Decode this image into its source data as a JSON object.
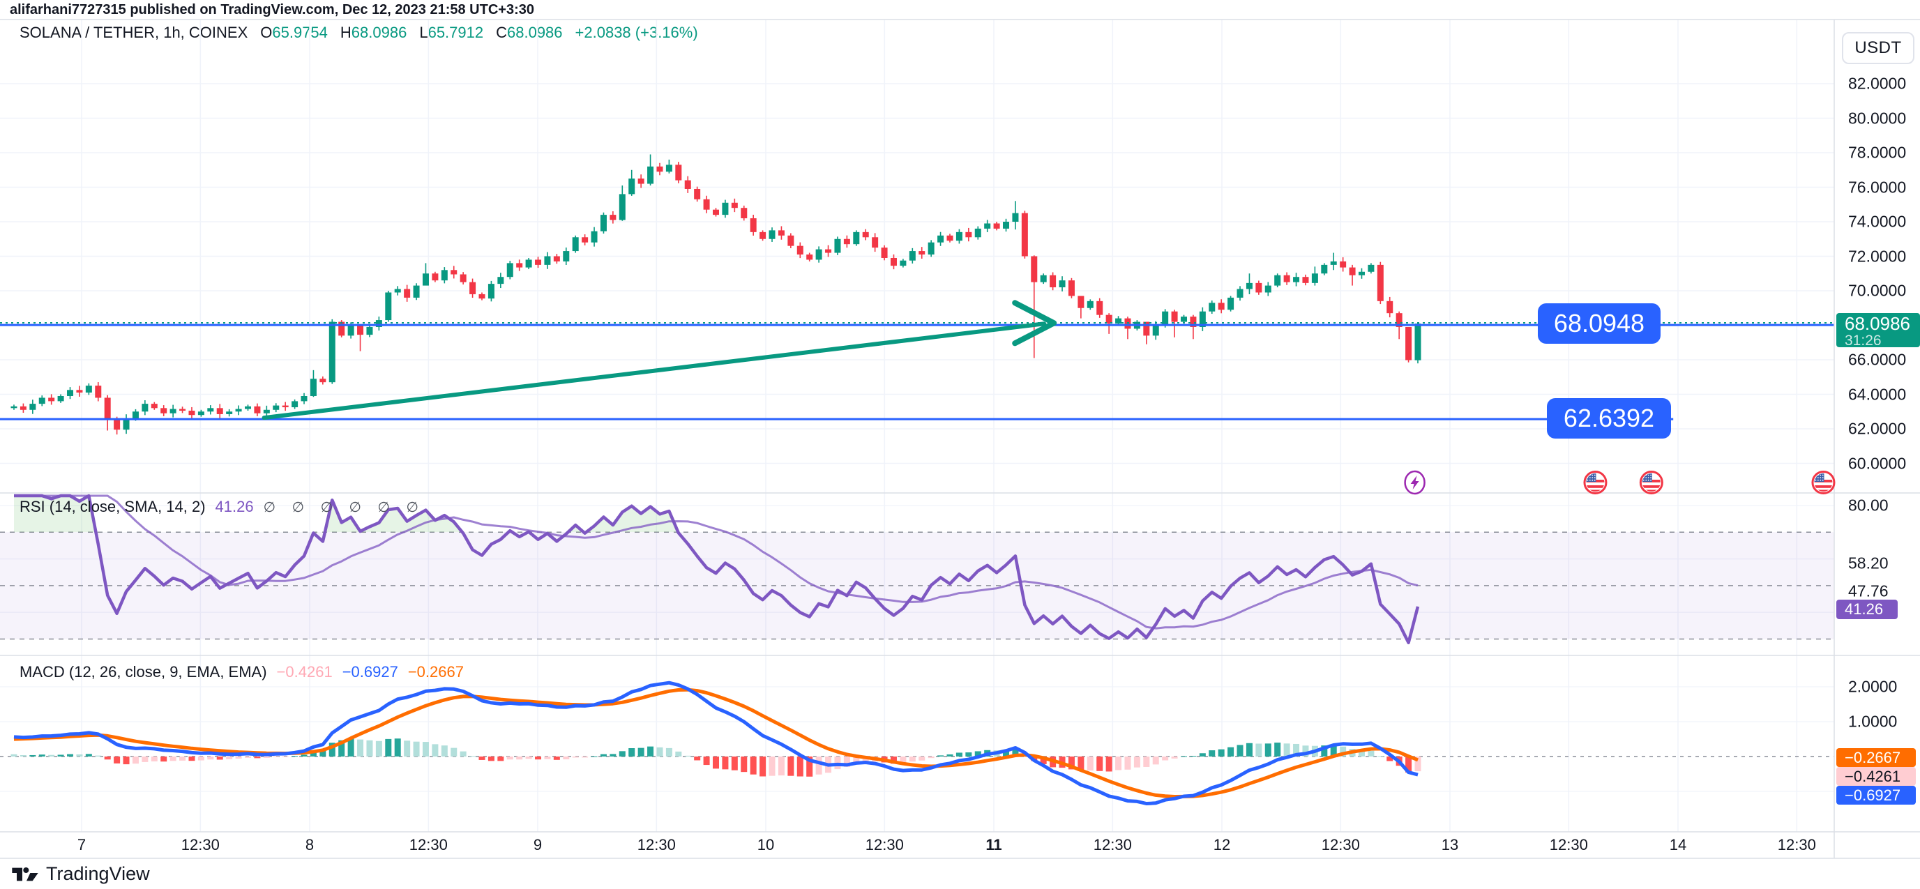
{
  "header": {
    "text": "alifarhani7727315 published on TradingView.com, Dec 12, 2023 21:58 UTC+3:30"
  },
  "symbol": {
    "title": "SOLANA / TETHER, 1h, COINEX",
    "o_label": "O",
    "o_value": "65.9754",
    "h_label": "H",
    "h_value": "68.0986",
    "l_label": "L",
    "l_value": "65.7912",
    "c_label": "C",
    "c_value": "68.0986",
    "change": "+2.0838 (+3.16%)"
  },
  "axis": {
    "currency": "USDT",
    "price_ticks": [
      {
        "label": "82.0000",
        "value": 82
      },
      {
        "label": "80.0000",
        "value": 80
      },
      {
        "label": "78.0000",
        "value": 78
      },
      {
        "label": "76.0000",
        "value": 76
      },
      {
        "label": "74.0000",
        "value": 74
      },
      {
        "label": "72.0000",
        "value": 72
      },
      {
        "label": "70.0000",
        "value": 70
      },
      {
        "label": "66.0000",
        "value": 66
      },
      {
        "label": "64.0000",
        "value": 64
      },
      {
        "label": "62.0000",
        "value": 62
      },
      {
        "label": "60.0000",
        "value": 60
      }
    ],
    "rsi_ticks": [
      {
        "label": "80.00",
        "value": 80
      },
      {
        "label": "58.20",
        "value": 58.2
      },
      {
        "label": "47.76",
        "value": 47.76
      }
    ],
    "macd_ticks": [
      {
        "label": "2.0000",
        "value": 2
      },
      {
        "label": "1.0000",
        "value": 1
      }
    ]
  },
  "last_price": {
    "value": "68.0986",
    "countdown": "31:26"
  },
  "levels": {
    "resistance": "68.0948",
    "support": "62.6392"
  },
  "rsi": {
    "title": "RSI (14, close, SMA, 14, 2)",
    "value": "41.26",
    "markers": "∅ ∅ ∅ ∅ ∅ ∅",
    "badge": "41.26"
  },
  "macd": {
    "title": "MACD (12, 26, close, 9, EMA, EMA)",
    "hist_value": "−0.4261",
    "macd_value": "−0.6927",
    "signal_value": "−0.2667",
    "badge_signal": "−0.2667",
    "badge_hist": "−0.4261",
    "badge_macd": "−0.6927"
  },
  "time_axis": {
    "labels": [
      {
        "text": "7",
        "hour": 0,
        "bold": false
      },
      {
        "text": "12:30",
        "hour": 12.5,
        "bold": false
      },
      {
        "text": "8",
        "hour": 24,
        "bold": false
      },
      {
        "text": "12:30",
        "hour": 36.5,
        "bold": false
      },
      {
        "text": "9",
        "hour": 48,
        "bold": false
      },
      {
        "text": "12:30",
        "hour": 60.5,
        "bold": false
      },
      {
        "text": "10",
        "hour": 72,
        "bold": false
      },
      {
        "text": "12:30",
        "hour": 84.5,
        "bold": false
      },
      {
        "text": "11",
        "hour": 96,
        "bold": true
      },
      {
        "text": "12:30",
        "hour": 108.5,
        "bold": false
      },
      {
        "text": "12",
        "hour": 120,
        "bold": false
      },
      {
        "text": "12:30",
        "hour": 132.5,
        "bold": false
      },
      {
        "text": "13",
        "hour": 144,
        "bold": false
      },
      {
        "text": "12:30",
        "hour": 156.5,
        "bold": false
      },
      {
        "text": "14",
        "hour": 168,
        "bold": false
      },
      {
        "text": "12:30",
        "hour": 180.5,
        "bold": false
      }
    ]
  },
  "footer": {
    "brand": "TradingView"
  },
  "chart_data": {
    "type": "candlestick",
    "title": "SOLANA / TETHER, 1h, COINEX",
    "interval": "1h",
    "ylim_price": [
      58.3,
      84.3
    ],
    "ylim_rsi": [
      24,
      84
    ],
    "ylim_macd": [
      -2.1,
      2.9
    ],
    "grid": true,
    "last_candle": {
      "open": 65.9754,
      "high": 68.0986,
      "low": 65.7912,
      "close": 68.0986
    },
    "candles": {
      "first_open": 63.2,
      "closes": [
        63.3,
        63.1,
        63.45,
        63.8,
        63.6,
        63.9,
        64.25,
        64.1,
        64.5,
        63.8,
        62.6,
        61.95,
        62.6,
        63.0,
        63.45,
        63.2,
        62.9,
        63.15,
        63.05,
        62.8,
        63.0,
        63.2,
        62.85,
        63.0,
        63.15,
        63.3,
        62.9,
        63.1,
        63.35,
        63.25,
        63.6,
        63.9,
        64.9,
        64.7,
        68.2,
        67.4,
        68.0,
        67.45,
        67.9,
        68.3,
        69.9,
        70.1,
        69.6,
        70.3,
        71.0,
        70.6,
        71.2,
        70.95,
        70.5,
        69.8,
        69.55,
        70.4,
        70.8,
        71.6,
        71.35,
        71.8,
        71.5,
        72.0,
        71.7,
        72.3,
        73.1,
        72.8,
        73.45,
        74.4,
        74.1,
        75.6,
        76.5,
        76.2,
        77.2,
        76.9,
        77.3,
        76.4,
        75.9,
        75.3,
        74.7,
        74.4,
        75.1,
        74.8,
        74.2,
        73.4,
        73.0,
        73.5,
        73.2,
        72.6,
        72.1,
        71.8,
        72.4,
        72.2,
        73.0,
        72.7,
        73.4,
        73.1,
        72.5,
        71.9,
        71.45,
        71.75,
        72.3,
        72.1,
        72.8,
        73.2,
        72.9,
        73.4,
        73.1,
        73.6,
        73.9,
        73.6,
        74.0,
        74.5,
        72.0,
        70.5,
        70.9,
        70.2,
        70.6,
        69.7,
        69.0,
        69.4,
        68.6,
        68.1,
        68.4,
        67.8,
        68.2,
        67.4,
        68.0,
        68.8,
        68.2,
        68.5,
        67.9,
        68.8,
        69.3,
        68.9,
        69.6,
        70.1,
        70.45,
        69.9,
        70.3,
        70.9,
        70.5,
        70.8,
        70.45,
        71.0,
        71.5,
        71.7,
        71.35,
        70.9,
        71.1,
        71.5,
        69.4,
        68.7,
        67.9,
        65.98,
        68.0986
      ],
      "wick_overrides": {
        "10": [
          63.95,
          61.9
        ],
        "11": [
          62.7,
          61.67
        ],
        "32": [
          65.4,
          63.85
        ],
        "34": [
          68.35,
          64.6
        ],
        "37": [
          67.95,
          66.5
        ],
        "44": [
          71.6,
          70.5
        ],
        "65": [
          76.1,
          74.05
        ],
        "66": [
          77.0,
          75.5
        ],
        "68": [
          77.9,
          76.1
        ],
        "70": [
          77.6,
          76.8
        ],
        "107": [
          75.2,
          73.55
        ],
        "109": [
          72.05,
          66.1
        ],
        "114": [
          69.5,
          68.4
        ],
        "117": [
          68.7,
          67.5
        ],
        "119": [
          68.5,
          67.2
        ],
        "121": [
          68.1,
          66.9
        ],
        "124": [
          68.9,
          67.3
        ],
        "126": [
          68.6,
          67.2
        ],
        "132": [
          71.0,
          69.8
        ],
        "139": [
          71.4,
          70.3
        ],
        "141": [
          72.2,
          71.2
        ],
        "143": [
          71.5,
          70.3
        ],
        "148": [
          68.8,
          67.2
        ],
        "149": [
          66.15,
          65.85
        ],
        "150": [
          68.0986,
          65.7912
        ]
      }
    },
    "indicators": {
      "rsi": {
        "length": 14,
        "source": "close",
        "ma_type": "SMA",
        "ma_length": 14,
        "bands": [
          70,
          50,
          30
        ],
        "current": 41.26
      },
      "macd": {
        "fast": 12,
        "slow": 26,
        "source": "close",
        "signal": 9,
        "ma_type": "EMA",
        "current_macd": -0.6927,
        "current_signal": -0.2667,
        "current_hist": -0.4261
      }
    },
    "drawings": {
      "trendline": {
        "from_hour": 19.2,
        "from_price": 62.64,
        "to_hour": 101.3,
        "to_price": 68.09
      },
      "horizontal_lines": [
        {
          "price": 68.0948,
          "full_width": true
        },
        {
          "price": 62.6392,
          "end_hour": 167.5
        }
      ],
      "dotted_price_line": 68.0986
    },
    "markers": [
      {
        "icon": "lightning",
        "hour": 140.3
      },
      {
        "icon": "us-flag",
        "hour": 159.3
      },
      {
        "icon": "us-flag",
        "hour": 165.2
      },
      {
        "icon": "us-flag",
        "hour": 183.3
      }
    ],
    "colors": {
      "up": "#089981",
      "down": "#F23645",
      "blue": "#2962FF",
      "trend": "#089981",
      "rsi_line": "#7E57C2",
      "macd_line": "#2962FF",
      "signal_line": "#FF6D00",
      "hist_grow_above": "#26A69A",
      "hist_fall_above": "#B2DFDB",
      "hist_grow_below": "#FFCDD2",
      "hist_fall_below": "#FF5252",
      "grid": "#F0F3FA",
      "separator": "#DCDFE5",
      "dashed": "#8A8E98",
      "badge_signal_bg": "#FF6D00",
      "badge_hist_bg": "#FFCDD2",
      "badge_macd_bg": "#2962FF",
      "rsi_badge_bg": "#7E57C2",
      "last_price_bg": "#089981"
    }
  }
}
